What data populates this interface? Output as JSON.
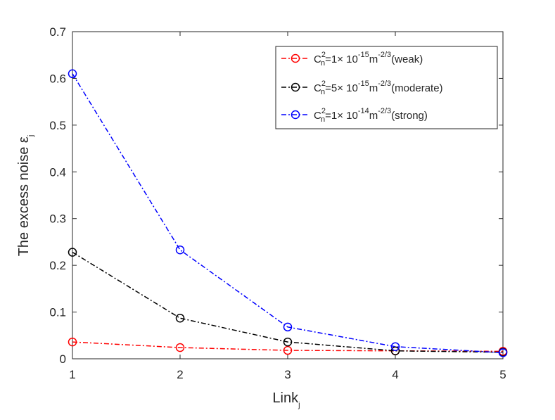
{
  "chart_data": {
    "type": "line",
    "title": "",
    "xlabel": "Link",
    "xlabel_sub": "j",
    "ylabel": "The excess noise ε",
    "ylabel_sub": "j",
    "x": [
      1,
      2,
      3,
      4,
      5
    ],
    "xlim": [
      1,
      5
    ],
    "ylim": [
      0,
      0.7
    ],
    "xticks": [
      "1",
      "2",
      "3",
      "4",
      "5"
    ],
    "yticks": [
      "0",
      "0.1",
      "0.2",
      "0.3",
      "0.4",
      "0.5",
      "0.6",
      "0.7"
    ],
    "ytick_values": [
      0,
      0.1,
      0.2,
      0.3,
      0.4,
      0.5,
      0.6,
      0.7
    ],
    "grid": false,
    "legend_position": "top-right",
    "series": [
      {
        "id": "weak",
        "color": "#ff0000",
        "marker": "circle",
        "line_style": "dash-dot",
        "values": [
          0.036,
          0.024,
          0.018,
          0.017,
          0.016
        ],
        "legend": {
          "c": "C",
          "csup": "2",
          "csub": "n",
          "mid": "=1× 10",
          "exp": "-15",
          "unit": "m",
          "uexp": "-2/3",
          "tail": "(weak)"
        }
      },
      {
        "id": "moderate",
        "color": "#000000",
        "marker": "circle",
        "line_style": "dash-dot",
        "values": [
          0.228,
          0.087,
          0.036,
          0.017,
          0.014
        ],
        "legend": {
          "c": "C",
          "csup": "2",
          "csub": "n",
          "mid": "=5× 10",
          "exp": "-15",
          "unit": "m",
          "uexp": "-2/3",
          "tail": "(moderate)"
        }
      },
      {
        "id": "strong",
        "color": "#0000ff",
        "marker": "circle",
        "line_style": "dash-dot",
        "values": [
          0.61,
          0.233,
          0.068,
          0.026,
          0.013
        ],
        "legend": {
          "c": "C",
          "csup": "2",
          "csub": "n",
          "mid": "=1× 10",
          "exp": "-14",
          "unit": "m",
          "uexp": "-2/3",
          "tail": "(strong)"
        }
      }
    ]
  }
}
